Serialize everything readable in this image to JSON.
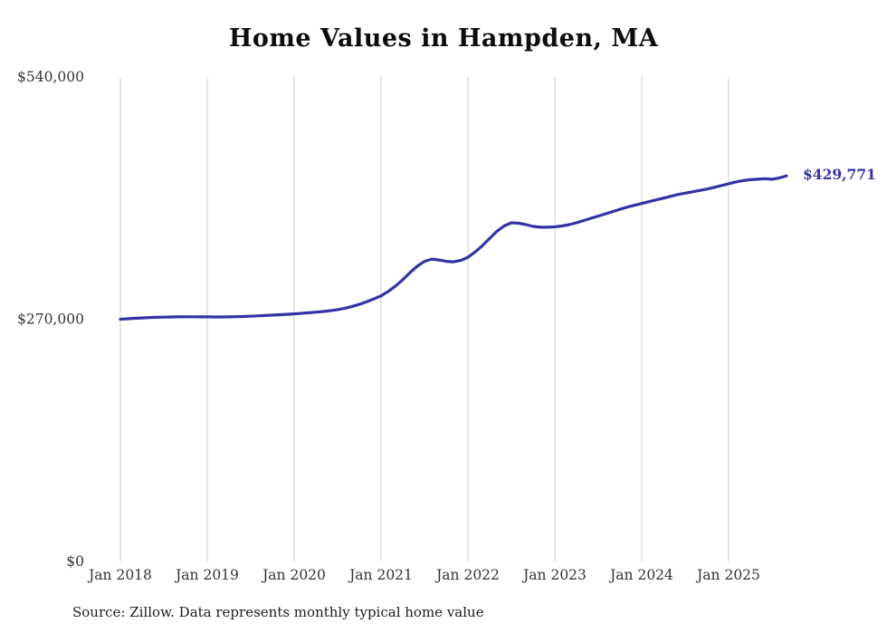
{
  "source_note": "Source: Zillow. Data represents monthly typical home value",
  "chart_data": {
    "type": "line",
    "title": "Home Values in Hampden, MA",
    "xlabel": "",
    "ylabel": "",
    "ylim": [
      0,
      540000
    ],
    "grid": "vertical-only",
    "legend": "none",
    "gridline_color": "#cccccc",
    "axis_text_color": "#343434",
    "x_tick_labels": [
      "Jan 2018",
      "Jan 2019",
      "Jan 2020",
      "Jan 2021",
      "Jan 2022",
      "Jan 2023",
      "Jan 2024",
      "Jan 2025"
    ],
    "y_ticks": [
      {
        "value": 0,
        "label": "$0"
      },
      {
        "value": 270000,
        "label": "$270,000"
      },
      {
        "value": 540000,
        "label": "$540,000"
      }
    ],
    "series": [
      {
        "name": "Typical home value",
        "color": "#3333a6",
        "end_label": "$429,771",
        "x": [
          "2018-01",
          "2018-02",
          "2018-03",
          "2018-04",
          "2018-05",
          "2018-06",
          "2018-07",
          "2018-08",
          "2018-09",
          "2018-10",
          "2018-11",
          "2018-12",
          "2019-01",
          "2019-02",
          "2019-03",
          "2019-04",
          "2019-05",
          "2019-06",
          "2019-07",
          "2019-08",
          "2019-09",
          "2019-10",
          "2019-11",
          "2019-12",
          "2020-01",
          "2020-02",
          "2020-03",
          "2020-04",
          "2020-05",
          "2020-06",
          "2020-07",
          "2020-08",
          "2020-09",
          "2020-10",
          "2020-11",
          "2020-12",
          "2021-01",
          "2021-02",
          "2021-03",
          "2021-04",
          "2021-05",
          "2021-06",
          "2021-07",
          "2021-08",
          "2021-09",
          "2021-10",
          "2021-11",
          "2021-12",
          "2022-01",
          "2022-02",
          "2022-03",
          "2022-04",
          "2022-05",
          "2022-06",
          "2022-07",
          "2022-08",
          "2022-09",
          "2022-10",
          "2022-11",
          "2022-12",
          "2023-01",
          "2023-02",
          "2023-03",
          "2023-04",
          "2023-05",
          "2023-06",
          "2023-07",
          "2023-08",
          "2023-09",
          "2023-10",
          "2023-11",
          "2023-12",
          "2024-01",
          "2024-02",
          "2024-03",
          "2024-04",
          "2024-05",
          "2024-06",
          "2024-07",
          "2024-08",
          "2024-09",
          "2024-10",
          "2024-11",
          "2024-12",
          "2025-01",
          "2025-02",
          "2025-03",
          "2025-04",
          "2025-05",
          "2025-06",
          "2025-07",
          "2025-08",
          "2025-09"
        ],
        "values": [
          270000,
          270500,
          271000,
          271400,
          271800,
          272100,
          272300,
          272500,
          272600,
          272700,
          272700,
          272600,
          272600,
          272500,
          272500,
          272600,
          272800,
          273000,
          273300,
          273700,
          274100,
          274500,
          275000,
          275500,
          276000,
          276600,
          277200,
          277900,
          278600,
          279500,
          280700,
          282200,
          284200,
          286600,
          289500,
          292600,
          296000,
          301000,
          307000,
          314000,
          322000,
          329000,
          334500,
          337000,
          336000,
          334500,
          334000,
          335500,
          339000,
          345000,
          352000,
          360000,
          368000,
          374000,
          377500,
          377000,
          375500,
          373500,
          372500,
          372500,
          373000,
          374000,
          375500,
          377500,
          380000,
          382500,
          385000,
          387500,
          390000,
          392500,
          395000,
          397000,
          399000,
          401000,
          403000,
          405000,
          407000,
          409000,
          410500,
          412000,
          413500,
          415000,
          417000,
          419000,
          421000,
          423000,
          424500,
          425500,
          426000,
          426500,
          426000,
          427500,
          429771
        ]
      }
    ]
  }
}
